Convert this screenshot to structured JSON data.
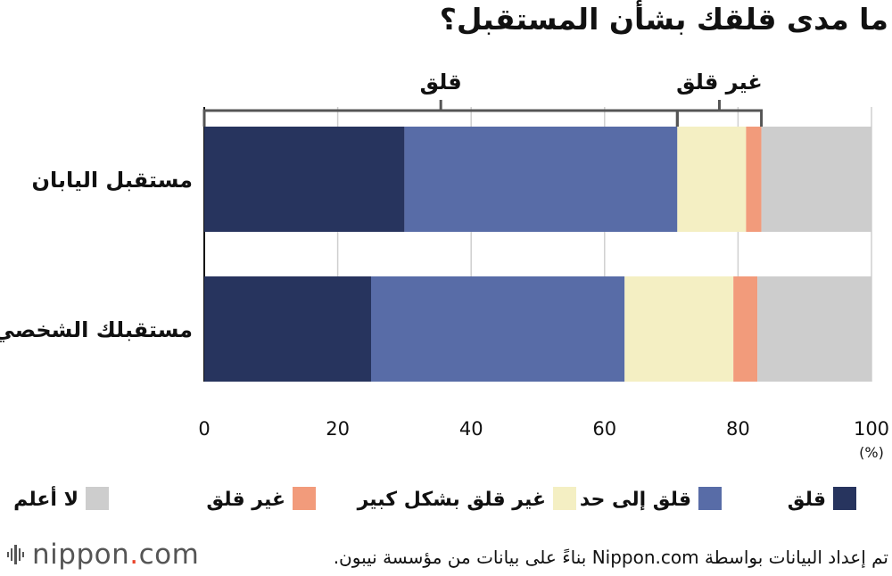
{
  "title": "ما مدى قلقك بشأن المستقبل؟",
  "source_note": "تم إعداد البيانات بواسطة Nippon.com بناءً على بيانات من مؤسسة نيبون.",
  "logo": {
    "name": "nippon",
    "dot": ".",
    "suffix": "com"
  },
  "chart_data": {
    "type": "bar",
    "orientation": "horizontal",
    "stacked": true,
    "categories": [
      "مستقبل اليابان",
      "مستقبلك الشخصي"
    ],
    "series": [
      {
        "name": "قلق",
        "color": "#27345e",
        "values": [
          30.0,
          25.0
        ]
      },
      {
        "name": "قلق إلى حد ما",
        "color": "#586ca7",
        "values": [
          40.9,
          38.0
        ]
      },
      {
        "name": "غير قلق بشكل كبير",
        "color": "#f4efc3",
        "values": [
          10.3,
          16.3
        ]
      },
      {
        "name": "غير قلق",
        "color": "#f29b7b",
        "values": [
          2.3,
          3.6
        ]
      },
      {
        "name": "لا أعلم",
        "color": "#cdcdcd",
        "values": [
          16.5,
          17.1
        ]
      }
    ],
    "xlim": [
      0,
      100
    ],
    "xticks": [
      "0",
      "20",
      "40",
      "60",
      "80",
      "100"
    ],
    "unit_label": "(%)",
    "grid": true,
    "legend_position": "bottom",
    "brackets": [
      {
        "label": "قلق",
        "from": 0,
        "to": 70.9
      },
      {
        "label": "غير قلق",
        "from": 70.9,
        "to": 83.5
      }
    ]
  }
}
